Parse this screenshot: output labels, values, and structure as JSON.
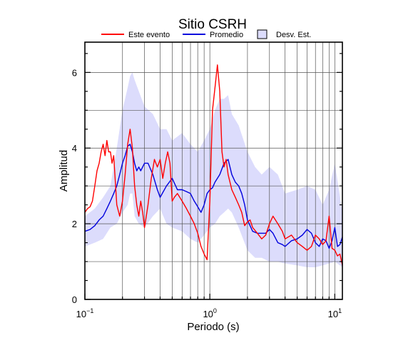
{
  "chart_data": {
    "type": "line",
    "title": "Sitio CSRH",
    "xlabel": "Periodo (s)",
    "ylabel": "Amplitud",
    "xscale": "log",
    "xlim": [
      0.1,
      11.5
    ],
    "ylim": [
      0,
      6.8
    ],
    "xticks": [
      {
        "base": "10",
        "exp": "−1",
        "value": 0.1
      },
      {
        "base": "10",
        "exp": "0",
        "value": 1
      },
      {
        "base": "10",
        "exp": "1",
        "value": 10
      }
    ],
    "yticks": [
      "0",
      "2",
      "4",
      "6"
    ],
    "grid": true,
    "legend_position": "top",
    "legend": [
      {
        "label": "Este evento",
        "kind": "line",
        "color": "#ff0000"
      },
      {
        "label": "Promedio",
        "kind": "line",
        "color": "#0000dd"
      },
      {
        "label": "Desv. Est.",
        "kind": "fill",
        "color": "#dcdcfc"
      }
    ],
    "series": [
      {
        "name": "Este evento",
        "color": "#ff0000",
        "x": [
          0.1,
          0.105,
          0.11,
          0.115,
          0.12,
          0.125,
          0.13,
          0.135,
          0.14,
          0.145,
          0.15,
          0.155,
          0.16,
          0.165,
          0.17,
          0.18,
          0.19,
          0.2,
          0.21,
          0.22,
          0.23,
          0.24,
          0.25,
          0.26,
          0.27,
          0.28,
          0.29,
          0.3,
          0.31,
          0.32,
          0.34,
          0.36,
          0.38,
          0.4,
          0.42,
          0.44,
          0.46,
          0.48,
          0.5,
          0.52,
          0.55,
          0.6,
          0.65,
          0.7,
          0.75,
          0.8,
          0.85,
          0.9,
          0.95,
          1.0,
          1.05,
          1.1,
          1.15,
          1.2,
          1.25,
          1.3,
          1.35,
          1.4,
          1.5,
          1.6,
          1.7,
          1.8,
          1.9,
          2.0,
          2.1,
          2.2,
          2.4,
          2.6,
          2.8,
          3.0,
          3.2,
          3.5,
          3.8,
          4.0,
          4.5,
          5.0,
          5.5,
          6.0,
          6.5,
          7.0,
          7.5,
          8.0,
          8.5,
          9.0,
          9.5,
          10.0,
          10.5,
          11.0,
          11.5
        ],
        "y": [
          2.3,
          2.4,
          2.45,
          2.6,
          3.0,
          3.4,
          3.6,
          3.9,
          4.1,
          3.8,
          4.2,
          3.9,
          3.9,
          3.6,
          3.8,
          2.5,
          2.2,
          2.6,
          3.3,
          4.1,
          4.5,
          4.0,
          3.0,
          2.5,
          2.2,
          2.6,
          2.3,
          1.9,
          2.2,
          2.5,
          3.2,
          3.7,
          3.5,
          3.7,
          3.2,
          3.6,
          3.9,
          3.6,
          2.6,
          2.7,
          2.8,
          2.6,
          2.4,
          2.2,
          2.0,
          1.75,
          1.4,
          1.2,
          1.05,
          2.6,
          5.0,
          5.6,
          6.2,
          5.5,
          3.9,
          3.5,
          3.7,
          3.3,
          2.9,
          2.7,
          2.5,
          2.3,
          1.95,
          2.05,
          2.1,
          1.9,
          1.75,
          1.6,
          1.7,
          2.0,
          2.2,
          2.0,
          1.8,
          1.6,
          1.7,
          1.5,
          1.4,
          1.3,
          1.4,
          1.7,
          1.6,
          1.45,
          1.55,
          2.2,
          1.35,
          1.3,
          1.15,
          1.2,
          0.9
        ]
      },
      {
        "name": "Promedio",
        "color": "#0000dd",
        "x": [
          0.1,
          0.11,
          0.12,
          0.13,
          0.14,
          0.15,
          0.16,
          0.17,
          0.18,
          0.19,
          0.2,
          0.21,
          0.22,
          0.23,
          0.24,
          0.25,
          0.26,
          0.27,
          0.28,
          0.3,
          0.32,
          0.35,
          0.38,
          0.4,
          0.45,
          0.5,
          0.55,
          0.6,
          0.65,
          0.7,
          0.75,
          0.8,
          0.85,
          0.9,
          0.95,
          1.0,
          1.05,
          1.1,
          1.2,
          1.3,
          1.4,
          1.5,
          1.6,
          1.7,
          1.8,
          1.9,
          2.0,
          2.2,
          2.4,
          2.6,
          2.8,
          3.0,
          3.2,
          3.5,
          3.8,
          4.0,
          4.5,
          5.0,
          5.5,
          6.0,
          6.5,
          7.0,
          7.5,
          8.0,
          8.5,
          9.0,
          9.5,
          10.0,
          10.5,
          11.0,
          11.5
        ],
        "y": [
          1.8,
          1.85,
          1.95,
          2.1,
          2.2,
          2.4,
          2.6,
          2.8,
          3.0,
          3.3,
          3.6,
          3.8,
          4.05,
          4.1,
          3.9,
          3.6,
          3.4,
          3.5,
          3.4,
          3.6,
          3.6,
          3.3,
          2.9,
          2.7,
          3.0,
          3.2,
          2.9,
          2.9,
          2.85,
          2.8,
          2.6,
          2.45,
          2.3,
          2.5,
          2.8,
          2.9,
          2.95,
          3.1,
          3.3,
          3.6,
          3.7,
          3.3,
          3.1,
          3.0,
          2.8,
          2.5,
          2.1,
          1.8,
          1.75,
          1.75,
          1.75,
          1.85,
          1.75,
          1.5,
          1.45,
          1.4,
          1.55,
          1.6,
          1.7,
          1.85,
          1.75,
          1.5,
          1.4,
          1.6,
          1.55,
          1.35,
          1.55,
          1.9,
          1.4,
          1.45,
          1.65
        ]
      }
    ],
    "band": {
      "name": "Desv. Est.",
      "color": "#dcdcfc",
      "x": [
        0.1,
        0.12,
        0.14,
        0.16,
        0.18,
        0.2,
        0.22,
        0.23,
        0.24,
        0.25,
        0.27,
        0.3,
        0.35,
        0.4,
        0.45,
        0.5,
        0.6,
        0.7,
        0.8,
        0.9,
        1.0,
        1.1,
        1.2,
        1.3,
        1.4,
        1.5,
        1.7,
        2.0,
        2.3,
        2.6,
        3.0,
        3.5,
        4.0,
        5.0,
        6.0,
        7.0,
        8.0,
        9.0,
        10.0,
        11.5
      ],
      "upper": [
        2.2,
        2.4,
        2.7,
        3.0,
        4.0,
        5.0,
        5.6,
        5.9,
        6.0,
        5.8,
        5.5,
        5.1,
        4.9,
        4.5,
        4.5,
        4.2,
        4.4,
        4.1,
        3.9,
        4.2,
        4.5,
        5.0,
        5.3,
        5.3,
        5.4,
        4.9,
        4.6,
        3.9,
        3.5,
        3.3,
        3.5,
        3.3,
        2.8,
        2.9,
        3.0,
        2.9,
        2.5,
        2.9,
        3.6,
        2.3
      ],
      "lower": [
        1.4,
        1.5,
        1.6,
        1.9,
        2.0,
        2.3,
        2.5,
        2.8,
        2.8,
        2.2,
        2.0,
        1.9,
        2.2,
        2.4,
        2.0,
        1.9,
        1.8,
        1.6,
        1.5,
        1.7,
        1.9,
        2.0,
        2.2,
        2.3,
        2.4,
        2.3,
        1.9,
        1.3,
        1.1,
        1.1,
        1.0,
        1.0,
        0.95,
        0.9,
        0.85,
        0.85,
        0.9,
        0.95,
        1.0,
        0.85
      ]
    }
  }
}
